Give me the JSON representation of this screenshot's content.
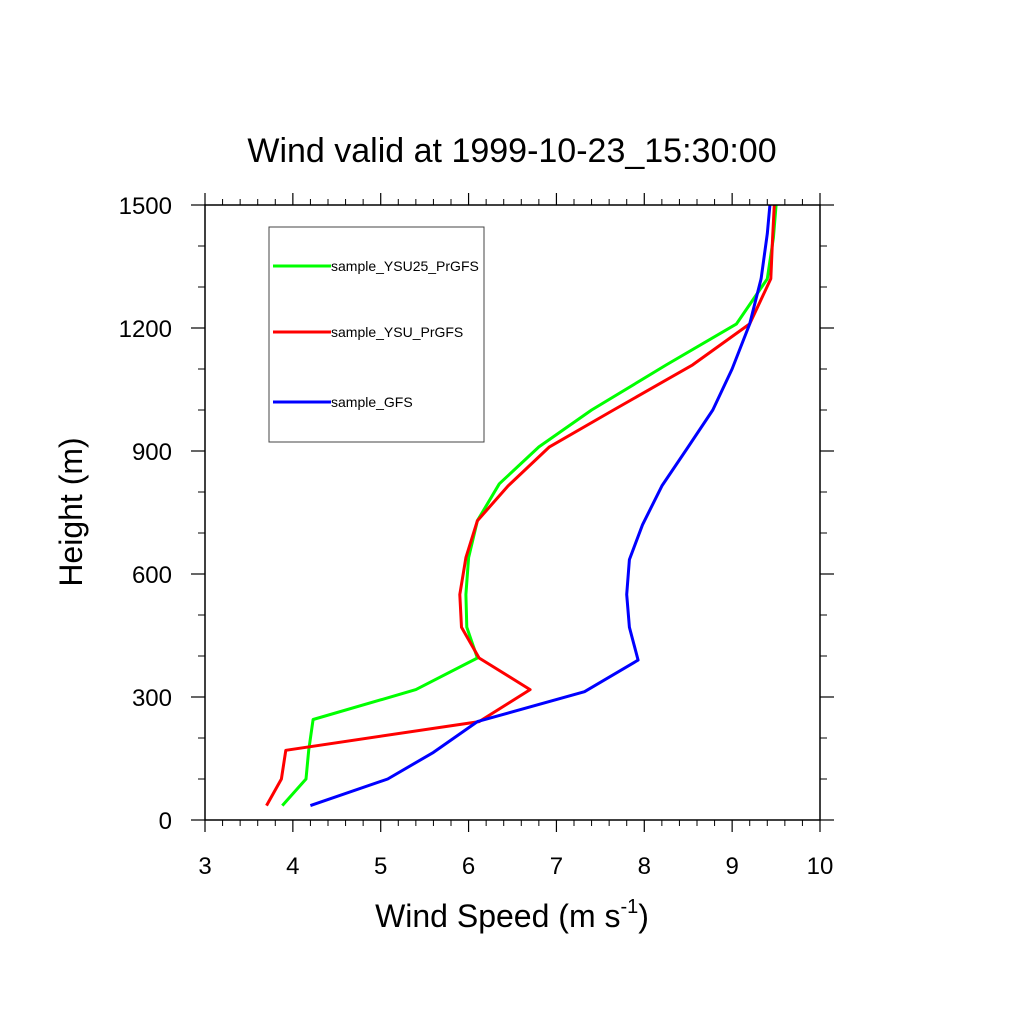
{
  "chart_data": {
    "type": "line",
    "title": "Wind valid at 1999-10-23_15:30:00",
    "xlabel": "Wind Speed (m s",
    "xlabel_superscript": "-1",
    "xlabel_close": ")",
    "ylabel": "Height (m)",
    "xlim": [
      3,
      10
    ],
    "ylim": [
      0,
      1500
    ],
    "xticks": [
      "3",
      "4",
      "5",
      "6",
      "7",
      "8",
      "9",
      "10"
    ],
    "yticks": [
      "0",
      "300",
      "600",
      "900",
      "1200",
      "1500"
    ],
    "grid": false,
    "legend_position": "top-left",
    "series": [
      {
        "name": "sample_YSU25_PrGFS",
        "color": "#00ff00",
        "x": [
          3.88,
          4.15,
          4.18,
          4.23,
          5.4,
          6.1,
          5.98,
          5.97,
          6.0,
          6.1,
          6.35,
          6.8,
          7.4,
          8.25,
          9.05,
          9.4,
          9.47,
          9.5
        ],
        "y": [
          35,
          100,
          170,
          245,
          318,
          395,
          470,
          550,
          640,
          730,
          820,
          910,
          1000,
          1110,
          1210,
          1320,
          1420,
          1500
        ]
      },
      {
        "name": "sample_YSU_PrGFS",
        "color": "#ff0000",
        "x": [
          3.7,
          3.87,
          3.92,
          6.12,
          6.7,
          6.12,
          5.92,
          5.9,
          5.97,
          6.1,
          6.45,
          6.92,
          7.65,
          8.55,
          9.2,
          9.44,
          9.46,
          9.48
        ],
        "y": [
          35,
          100,
          170,
          240,
          318,
          395,
          470,
          550,
          640,
          730,
          815,
          910,
          1000,
          1110,
          1210,
          1320,
          1420,
          1500
        ]
      },
      {
        "name": "sample_GFS",
        "color": "#0000ff",
        "x": [
          4.2,
          5.08,
          5.6,
          6.1,
          7.32,
          7.93,
          7.83,
          7.8,
          7.83,
          7.98,
          8.2,
          8.5,
          8.78,
          9.0,
          9.2,
          9.33,
          9.4,
          9.43
        ],
        "y": [
          35,
          100,
          165,
          240,
          313,
          390,
          470,
          550,
          635,
          720,
          815,
          910,
          1000,
          1100,
          1210,
          1320,
          1430,
          1500
        ]
      }
    ]
  }
}
